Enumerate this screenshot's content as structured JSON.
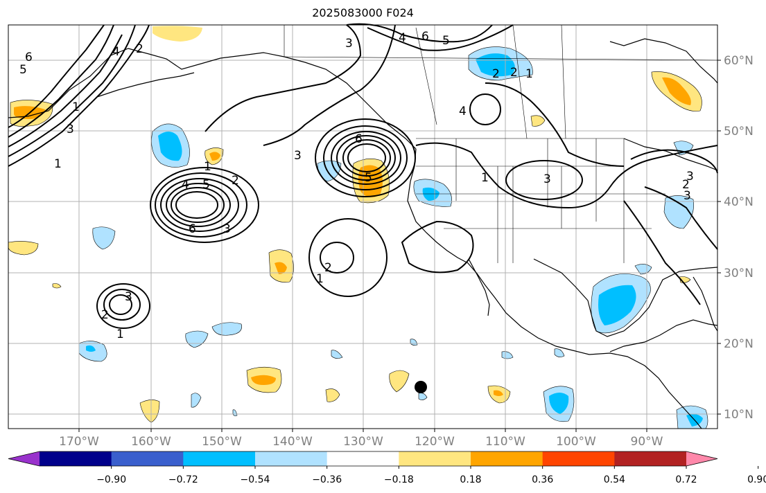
{
  "title": "2025083000 F024",
  "lon_labels": [
    "170°W",
    "160°W",
    "150°W",
    "140°W",
    "130°W",
    "120°W",
    "110°W",
    "100°W",
    "90°W"
  ],
  "lat_labels": [
    "60°N",
    "50°N",
    "40°N",
    "30°N",
    "20°N",
    "10°N"
  ],
  "colorbar": {
    "colors": [
      "#9932cc",
      "#00008b",
      "#3a5fcd",
      "#00bfff",
      "#b0e2ff",
      "#ffffff",
      "#ffe680",
      "#ffa500",
      "#ff4500",
      "#b22222",
      "#ff88aa"
    ],
    "tick_labels": [
      "−0.90",
      "−0.72",
      "−0.54",
      "−0.36",
      "−0.18",
      "0.18",
      "0.36",
      "0.54",
      "0.72",
      "0.90"
    ]
  },
  "contour_labels": [
    "6",
    "5",
    "4",
    "3",
    "2",
    "1",
    "6",
    "5",
    "4",
    "3",
    "2",
    "1",
    "6",
    "5",
    "4",
    "3",
    "2",
    "1",
    "3",
    "2",
    "1",
    "2",
    "1",
    "3",
    "4",
    "5",
    "6",
    "3",
    "2",
    "1",
    "1",
    "3",
    "2",
    "3"
  ],
  "colors": {
    "grid": "#b0b0b0",
    "coast": "#000000",
    "contour": "#000000",
    "axis_label": "#7f7f7f"
  }
}
